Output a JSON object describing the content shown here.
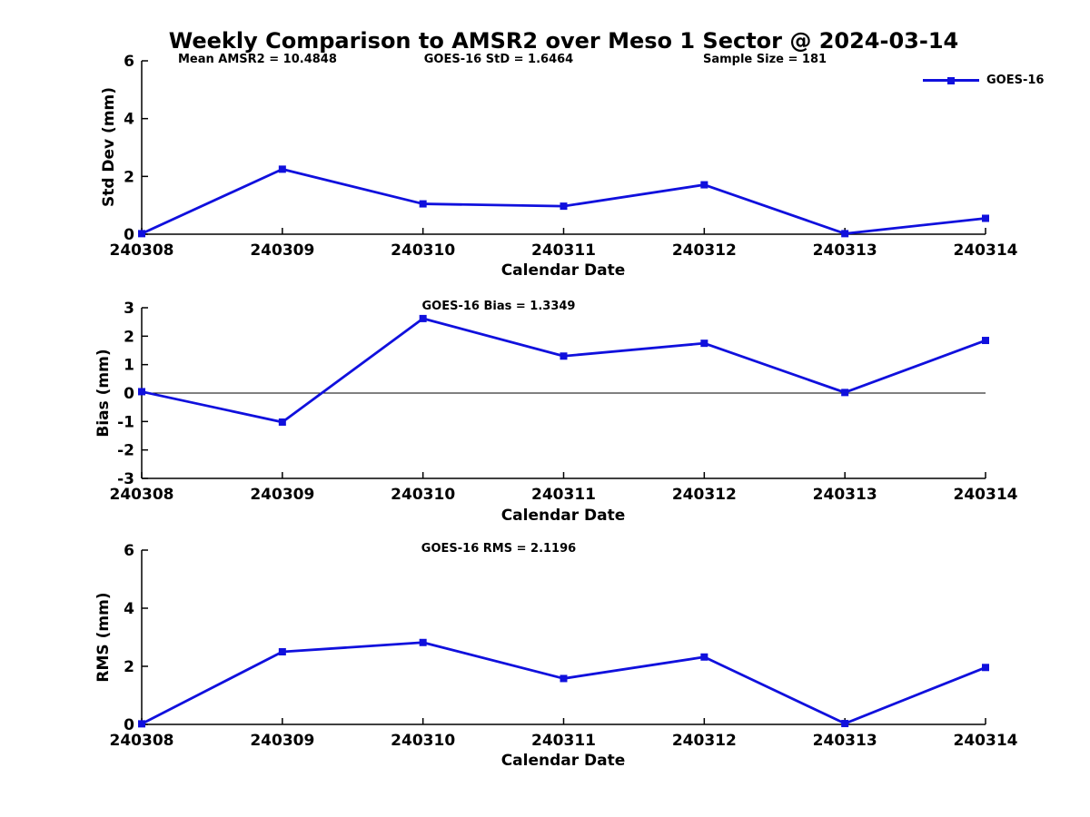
{
  "colors": {
    "line": "#1010dd",
    "axis": "#000000",
    "background": "#ffffff",
    "text": "#000000"
  },
  "header": {
    "title": "Weekly Comparison to AMSR2 over Meso 1 Sector @ 2024-03-14"
  },
  "stats": {
    "mean_amsr2": "Mean AMSR2 = 10.4848",
    "goes16_std": "GOES-16 StD = 1.6464",
    "sample_size": "Sample Size = 181"
  },
  "legend": {
    "label": "GOES-16"
  },
  "chart_data": [
    {
      "type": "line",
      "title": "",
      "ylabel": "Std Dev (mm)",
      "xlabel": "Calendar Date",
      "categories": [
        "240308",
        "240309",
        "240310",
        "240311",
        "240312",
        "240313",
        "240314"
      ],
      "series": [
        {
          "name": "GOES-16",
          "values": [
            0.02,
            2.25,
            1.05,
            0.97,
            1.71,
            0.02,
            0.55
          ]
        }
      ],
      "ylim": [
        0,
        6
      ],
      "yticks": [
        0,
        2,
        4,
        6
      ],
      "grid": false,
      "zero_line": false,
      "legend_position": "top-right",
      "marker": "square"
    },
    {
      "type": "line",
      "title": "GOES-16 Bias  = 1.3349",
      "ylabel": "Bias (mm)",
      "xlabel": "Calendar Date",
      "categories": [
        "240308",
        "240309",
        "240310",
        "240311",
        "240312",
        "240313",
        "240314"
      ],
      "series": [
        {
          "name": "GOES-16",
          "values": [
            0.05,
            -1.02,
            2.62,
            1.3,
            1.75,
            0.02,
            1.85
          ]
        }
      ],
      "ylim": [
        -3,
        3
      ],
      "yticks": [
        -3,
        -2,
        -1,
        0,
        1,
        2,
        3
      ],
      "grid": false,
      "zero_line": true,
      "legend_position": "none",
      "marker": "square"
    },
    {
      "type": "line",
      "title": "GOES-16 RMS = 2.1196",
      "ylabel": "RMS (mm)",
      "xlabel": "Calendar Date",
      "categories": [
        "240308",
        "240309",
        "240310",
        "240311",
        "240312",
        "240313",
        "240314"
      ],
      "series": [
        {
          "name": "GOES-16",
          "values": [
            0.02,
            2.5,
            2.82,
            1.58,
            2.32,
            0.03,
            1.96
          ]
        }
      ],
      "ylim": [
        0,
        6
      ],
      "yticks": [
        0,
        2,
        4,
        6
      ],
      "grid": false,
      "zero_line": false,
      "legend_position": "none",
      "marker": "square"
    }
  ]
}
